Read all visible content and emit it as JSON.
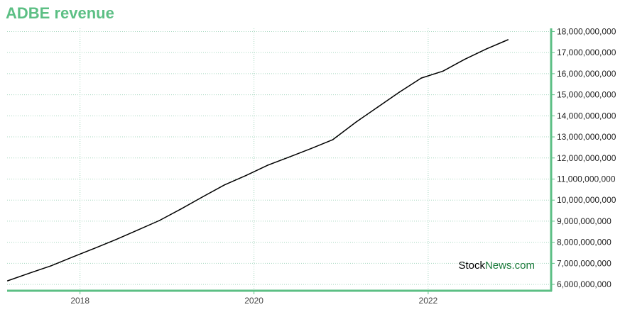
{
  "title": "ADBE revenue",
  "watermark": {
    "part1": "Stock",
    "part2": "News",
    "part3": ".com",
    "color1": "#000000",
    "color2": "#1a7a3a"
  },
  "colors": {
    "title": "#5cbf84",
    "axis": "#5cbf84",
    "grid": "#a8d8c0",
    "line": "#000000"
  },
  "chart_data": {
    "type": "line",
    "title": "ADBE revenue",
    "xlabel": "",
    "ylabel": "",
    "x_ticks": [
      "2018",
      "2020",
      "2022"
    ],
    "y_ticks": [
      "6,000,000,000",
      "7,000,000,000",
      "8,000,000,000",
      "9,000,000,000",
      "10,000,000,000",
      "11,000,000,000",
      "12,000,000,000",
      "13,000,000,000",
      "14,000,000,000",
      "15,000,000,000",
      "16,000,000,000",
      "17,000,000,000",
      "18,000,000,000"
    ],
    "ylim": [
      5700000000,
      18150000000
    ],
    "xlim": [
      "2017-03-01",
      "2023-06-01"
    ],
    "grid": true,
    "y_axis_side": "right",
    "series": [
      {
        "x": [
          "2017-03-03",
          "2017-06-02",
          "2017-09-01",
          "2017-12-01",
          "2018-03-02",
          "2018-06-01",
          "2018-08-31",
          "2018-11-30",
          "2019-03-01",
          "2019-05-31",
          "2019-08-30",
          "2019-11-29",
          "2020-02-28",
          "2020-05-29",
          "2020-08-28",
          "2020-11-27",
          "2021-03-05",
          "2021-06-04",
          "2021-09-03",
          "2021-12-03",
          "2022-03-04",
          "2022-06-03",
          "2022-09-02",
          "2022-12-02"
        ],
        "values": [
          6170000000,
          6530000000,
          6880000000,
          7300000000,
          7710000000,
          8130000000,
          8580000000,
          9030000000,
          9580000000,
          10160000000,
          10720000000,
          11170000000,
          11660000000,
          12050000000,
          12450000000,
          12870000000,
          13710000000,
          14420000000,
          15130000000,
          15790000000,
          16120000000,
          16680000000,
          17170000000,
          17610000000
        ]
      }
    ]
  }
}
